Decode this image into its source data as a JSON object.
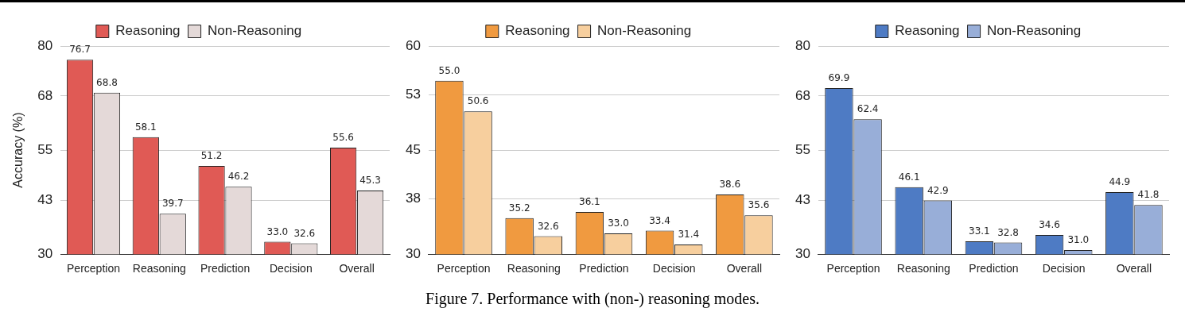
{
  "chart_data": [
    {
      "type": "bar",
      "ylabel": "Accuracy (%)",
      "categories": [
        "Perception",
        "Reasoning",
        "Prediction",
        "Decision",
        "Overall"
      ],
      "ylim": [
        30,
        80
      ],
      "yticks": [
        30,
        43,
        55,
        68,
        80
      ],
      "grid": "y",
      "legend": "top",
      "series": [
        {
          "name": "Reasoning",
          "color": "#e05a55",
          "values": [
            76.7,
            58.1,
            51.2,
            33.0,
            55.6
          ],
          "value_labels": [
            "76.7",
            "58.1",
            "51.2",
            "33.0",
            "55.6"
          ]
        },
        {
          "name": "Non-Reasoning",
          "color": "#e4d9d8",
          "values": [
            68.8,
            39.7,
            46.2,
            32.6,
            45.3
          ],
          "value_labels": [
            "68.8",
            "39.7",
            "46.2",
            "32.6",
            "45.3"
          ]
        }
      ],
      "annotations": [
        "Figure 7. Performance with (non-) reasoning modes."
      ]
    },
    {
      "type": "bar",
      "categories": [
        "Perception",
        "Reasoning",
        "Prediction",
        "Decision",
        "Overall"
      ],
      "ylim": [
        30,
        60
      ],
      "yticks": [
        30,
        38,
        45,
        53,
        60
      ],
      "grid": "y",
      "legend": "top",
      "series": [
        {
          "name": "Reasoning",
          "color": "#f09a40",
          "values": [
            55.0,
            35.2,
            36.1,
            33.4,
            38.6
          ],
          "value_labels": [
            "55.0",
            "35.2",
            "36.1",
            "33.4",
            "38.6"
          ]
        },
        {
          "name": "Non-Reasoning",
          "color": "#f7cf9e",
          "values": [
            50.6,
            32.6,
            33.0,
            31.4,
            35.6
          ],
          "value_labels": [
            "50.6",
            "32.6",
            "33.0",
            "31.4",
            "35.6"
          ]
        }
      ]
    },
    {
      "type": "bar",
      "categories": [
        "Perception",
        "Reasoning",
        "Prediction",
        "Decision",
        "Overall"
      ],
      "ylim": [
        30,
        80
      ],
      "yticks": [
        30,
        43,
        55,
        68,
        80
      ],
      "grid": "y",
      "legend": "top",
      "series": [
        {
          "name": "Reasoning",
          "color": "#4e7bc4",
          "values": [
            69.9,
            46.1,
            33.1,
            34.6,
            44.9
          ],
          "value_labels": [
            "69.9",
            "46.1",
            "33.1",
            "34.6",
            "44.9"
          ]
        },
        {
          "name": "Non-Reasoning",
          "color": "#98aed8",
          "values": [
            62.4,
            42.9,
            32.8,
            31.0,
            41.8
          ],
          "value_labels": [
            "62.4",
            "42.9",
            "32.8",
            "31.0",
            "41.8"
          ]
        }
      ]
    }
  ]
}
